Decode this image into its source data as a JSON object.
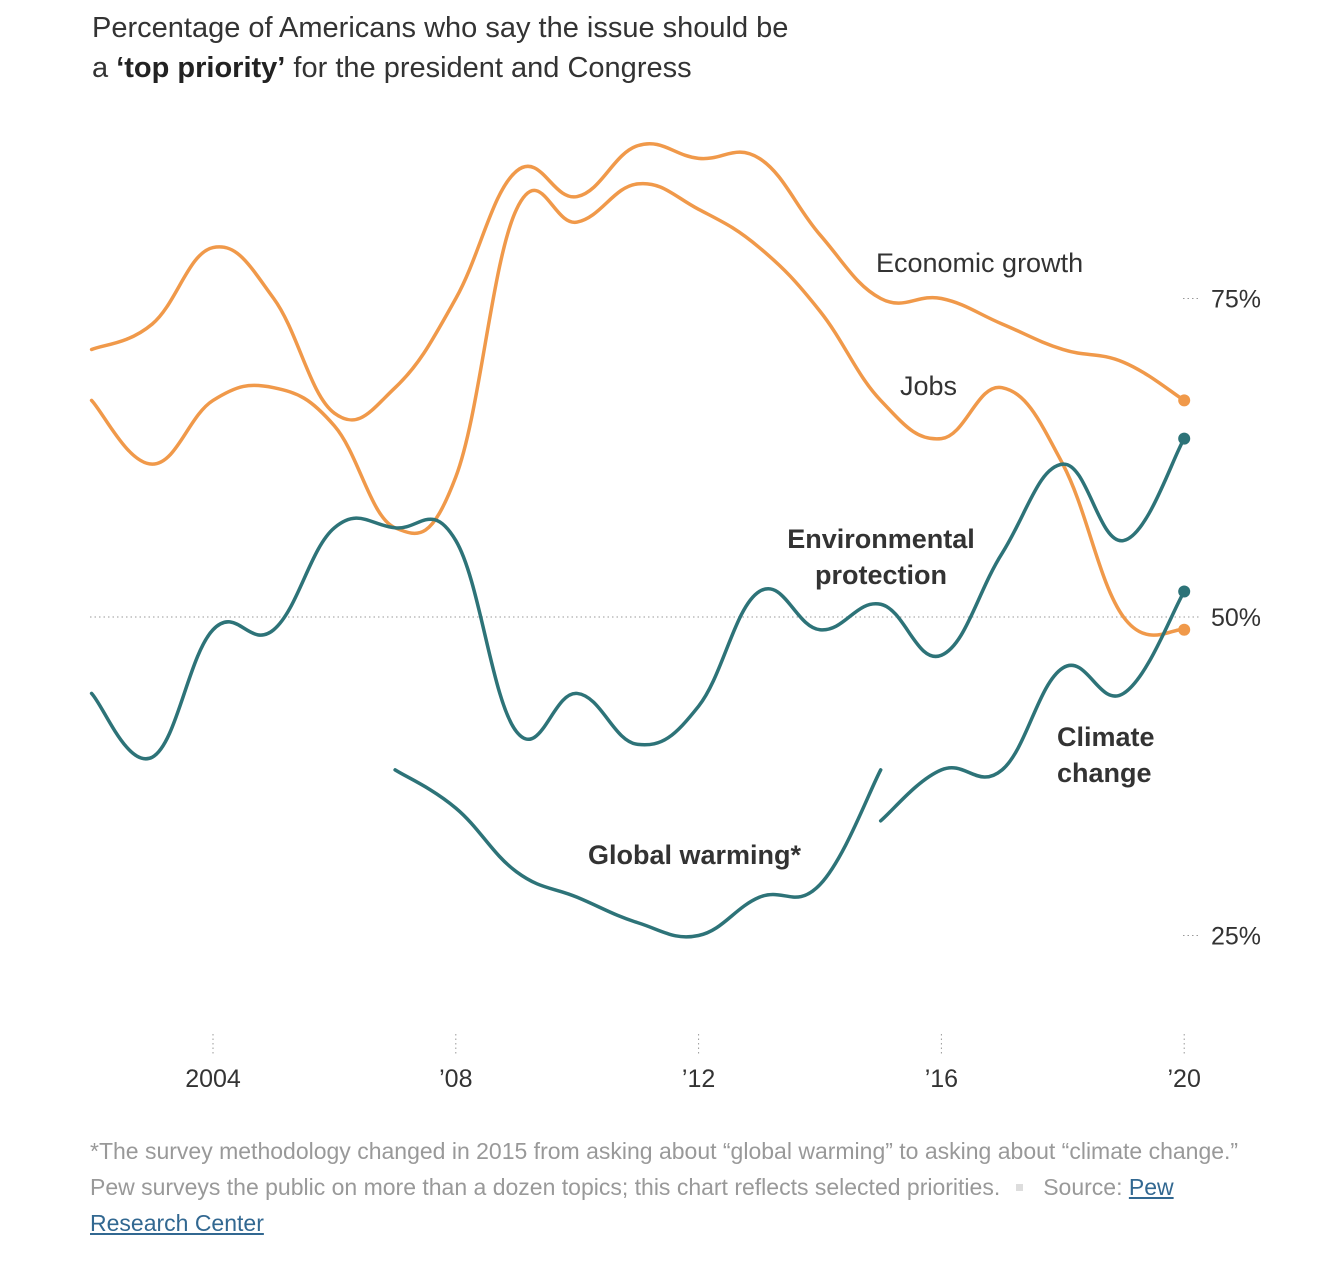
{
  "title": {
    "line1": "Percentage of Americans who say the issue should be",
    "line2_prefix": "a ",
    "line2_bold": "‘top priority’",
    "line2_suffix": " for the president and Congress"
  },
  "chart_data": {
    "type": "line",
    "title": "Percentage of Americans who say the issue should be a ‘top priority’ for the president and Congress",
    "x_ticks": [
      2004,
      2008,
      2012,
      2016,
      2020
    ],
    "x_tick_labels": [
      "2004",
      "’08",
      "’12",
      "’16",
      "’20"
    ],
    "y_ticks": [
      25,
      50,
      75
    ],
    "y_tick_labels": [
      "25%",
      "50%",
      "75%"
    ],
    "xlim": [
      2002,
      2020
    ],
    "ylim": [
      18,
      90
    ],
    "grid": "dotted line at 50%",
    "colors": {
      "economy": "#f0994a",
      "environment": "#2d7378"
    },
    "series": [
      {
        "name": "Economic growth",
        "color": "#f0994a",
        "bold": false,
        "x": [
          2002,
          2003,
          2004,
          2005,
          2006,
          2007,
          2008,
          2009,
          2010,
          2011,
          2012,
          2013,
          2014,
          2015,
          2016,
          2017,
          2018,
          2019,
          2020
        ],
        "values": [
          71,
          73,
          79,
          75,
          66,
          68,
          75,
          85,
          83,
          87,
          86,
          86,
          80,
          75,
          75,
          73,
          71,
          70,
          67
        ],
        "end_dot": true
      },
      {
        "name": "Jobs",
        "color": "#f0994a",
        "bold": false,
        "x": [
          2002,
          2003,
          2004,
          2005,
          2006,
          2007,
          2008,
          2009,
          2010,
          2011,
          2012,
          2013,
          2014,
          2015,
          2016,
          2017,
          2018,
          2019,
          2020
        ],
        "values": [
          67,
          62,
          67,
          68,
          65,
          57,
          61,
          82,
          81,
          84,
          82,
          79,
          74,
          67,
          64,
          68,
          62,
          50,
          49
        ],
        "end_dot": true
      },
      {
        "name": "Environmental protection",
        "color": "#2d7378",
        "bold": true,
        "x": [
          2002,
          2003,
          2004,
          2005,
          2006,
          2007,
          2008,
          2009,
          2010,
          2011,
          2012,
          2013,
          2014,
          2015,
          2016,
          2017,
          2018,
          2019,
          2020
        ],
        "values": [
          44,
          39,
          49,
          49,
          57,
          57,
          56,
          41,
          44,
          40,
          43,
          52,
          49,
          51,
          47,
          55,
          62,
          56,
          64
        ],
        "end_dot": true
      },
      {
        "name": "Global warming*",
        "color": "#2d7378",
        "bold": true,
        "x": [
          2007,
          2008,
          2009,
          2010,
          2011,
          2012,
          2013,
          2014,
          2015
        ],
        "values": [
          38,
          35,
          30,
          28,
          26,
          25,
          28,
          29,
          38
        ],
        "end_dot": false
      },
      {
        "name": "Climate change",
        "color": "#2d7378",
        "bold": true,
        "x": [
          2015,
          2016,
          2017,
          2018,
          2019,
          2020
        ],
        "values": [
          34,
          38,
          38,
          46,
          44,
          52
        ],
        "end_dot": true
      }
    ]
  },
  "labels": {
    "economic_growth": "Economic growth",
    "jobs": "Jobs",
    "environment_1": "Environmental",
    "environment_2": "protection",
    "global_warming": "Global warming*",
    "climate_1": "Climate",
    "climate_2": "change"
  },
  "footer": {
    "note_1": "*The survey methodology changed in 2015 from asking about “global warming” to asking about “climate change.” Pew surveys the public on more than a dozen topics; this chart reflects selected priorities.",
    "source_label": "Source: ",
    "source_link": "Pew Research Center"
  }
}
